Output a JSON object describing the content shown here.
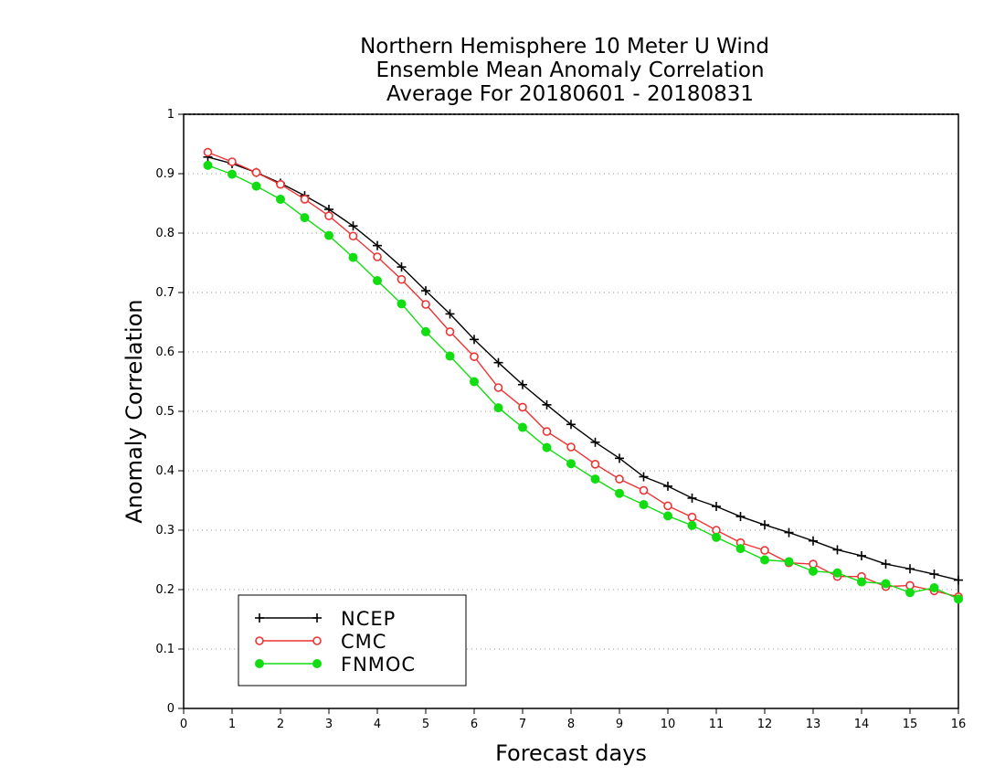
{
  "chart_data": {
    "type": "line",
    "title": [
      "Northern Hemisphere 10 Meter U Wind",
      "Ensemble Mean Anomaly Correlation",
      "Average For 20180601 - 20180831"
    ],
    "xlabel": "Forecast days",
    "ylabel": "Anomaly Correlation",
    "xlim": [
      0,
      16
    ],
    "ylim": [
      0,
      1
    ],
    "xticks": [
      "0",
      "1",
      "2",
      "3",
      "4",
      "5",
      "6",
      "7",
      "8",
      "9",
      "10",
      "11",
      "12",
      "13",
      "14",
      "15",
      "16"
    ],
    "yticks": [
      "0",
      "0.1",
      "0.2",
      "0.3",
      "0.4",
      "0.5",
      "0.6",
      "0.7",
      "0.8",
      "0.9",
      "1"
    ],
    "grid": "horizontal dotted",
    "legend_position": "bottom-left",
    "x": [
      0.5,
      1,
      1.5,
      2,
      2.5,
      3,
      3.5,
      4,
      4.5,
      5,
      5.5,
      6,
      6.5,
      7,
      7.5,
      8,
      8.5,
      9,
      9.5,
      10,
      10.5,
      11,
      11.5,
      12,
      12.5,
      13,
      13.5,
      14,
      14.5,
      15,
      15.5,
      16
    ],
    "series": [
      {
        "name": "NCEP",
        "color": "#000000",
        "marker": "plus",
        "values": [
          0.928,
          0.917,
          0.902,
          0.884,
          0.863,
          0.84,
          0.812,
          0.779,
          0.743,
          0.703,
          0.664,
          0.621,
          0.582,
          0.545,
          0.511,
          0.478,
          0.448,
          0.421,
          0.39,
          0.374,
          0.354,
          0.34,
          0.323,
          0.309,
          0.296,
          0.282,
          0.267,
          0.257,
          0.243,
          0.235,
          0.226,
          0.216
        ]
      },
      {
        "name": "CMC",
        "color": "#ee3333",
        "marker": "open-circle",
        "values": [
          0.936,
          0.92,
          0.902,
          0.882,
          0.857,
          0.829,
          0.795,
          0.76,
          0.722,
          0.68,
          0.634,
          0.592,
          0.54,
          0.507,
          0.466,
          0.44,
          0.411,
          0.386,
          0.367,
          0.341,
          0.322,
          0.3,
          0.279,
          0.266,
          0.245,
          0.243,
          0.222,
          0.222,
          0.205,
          0.207,
          0.198,
          0.188
        ]
      },
      {
        "name": "FNMOC",
        "color": "#11dd11",
        "marker": "filled-circle",
        "values": [
          0.914,
          0.899,
          0.879,
          0.857,
          0.826,
          0.796,
          0.759,
          0.72,
          0.681,
          0.634,
          0.593,
          0.55,
          0.506,
          0.473,
          0.439,
          0.412,
          0.386,
          0.362,
          0.343,
          0.324,
          0.308,
          0.288,
          0.269,
          0.25,
          0.247,
          0.231,
          0.228,
          0.213,
          0.21,
          0.195,
          0.203,
          0.184
        ]
      }
    ]
  }
}
